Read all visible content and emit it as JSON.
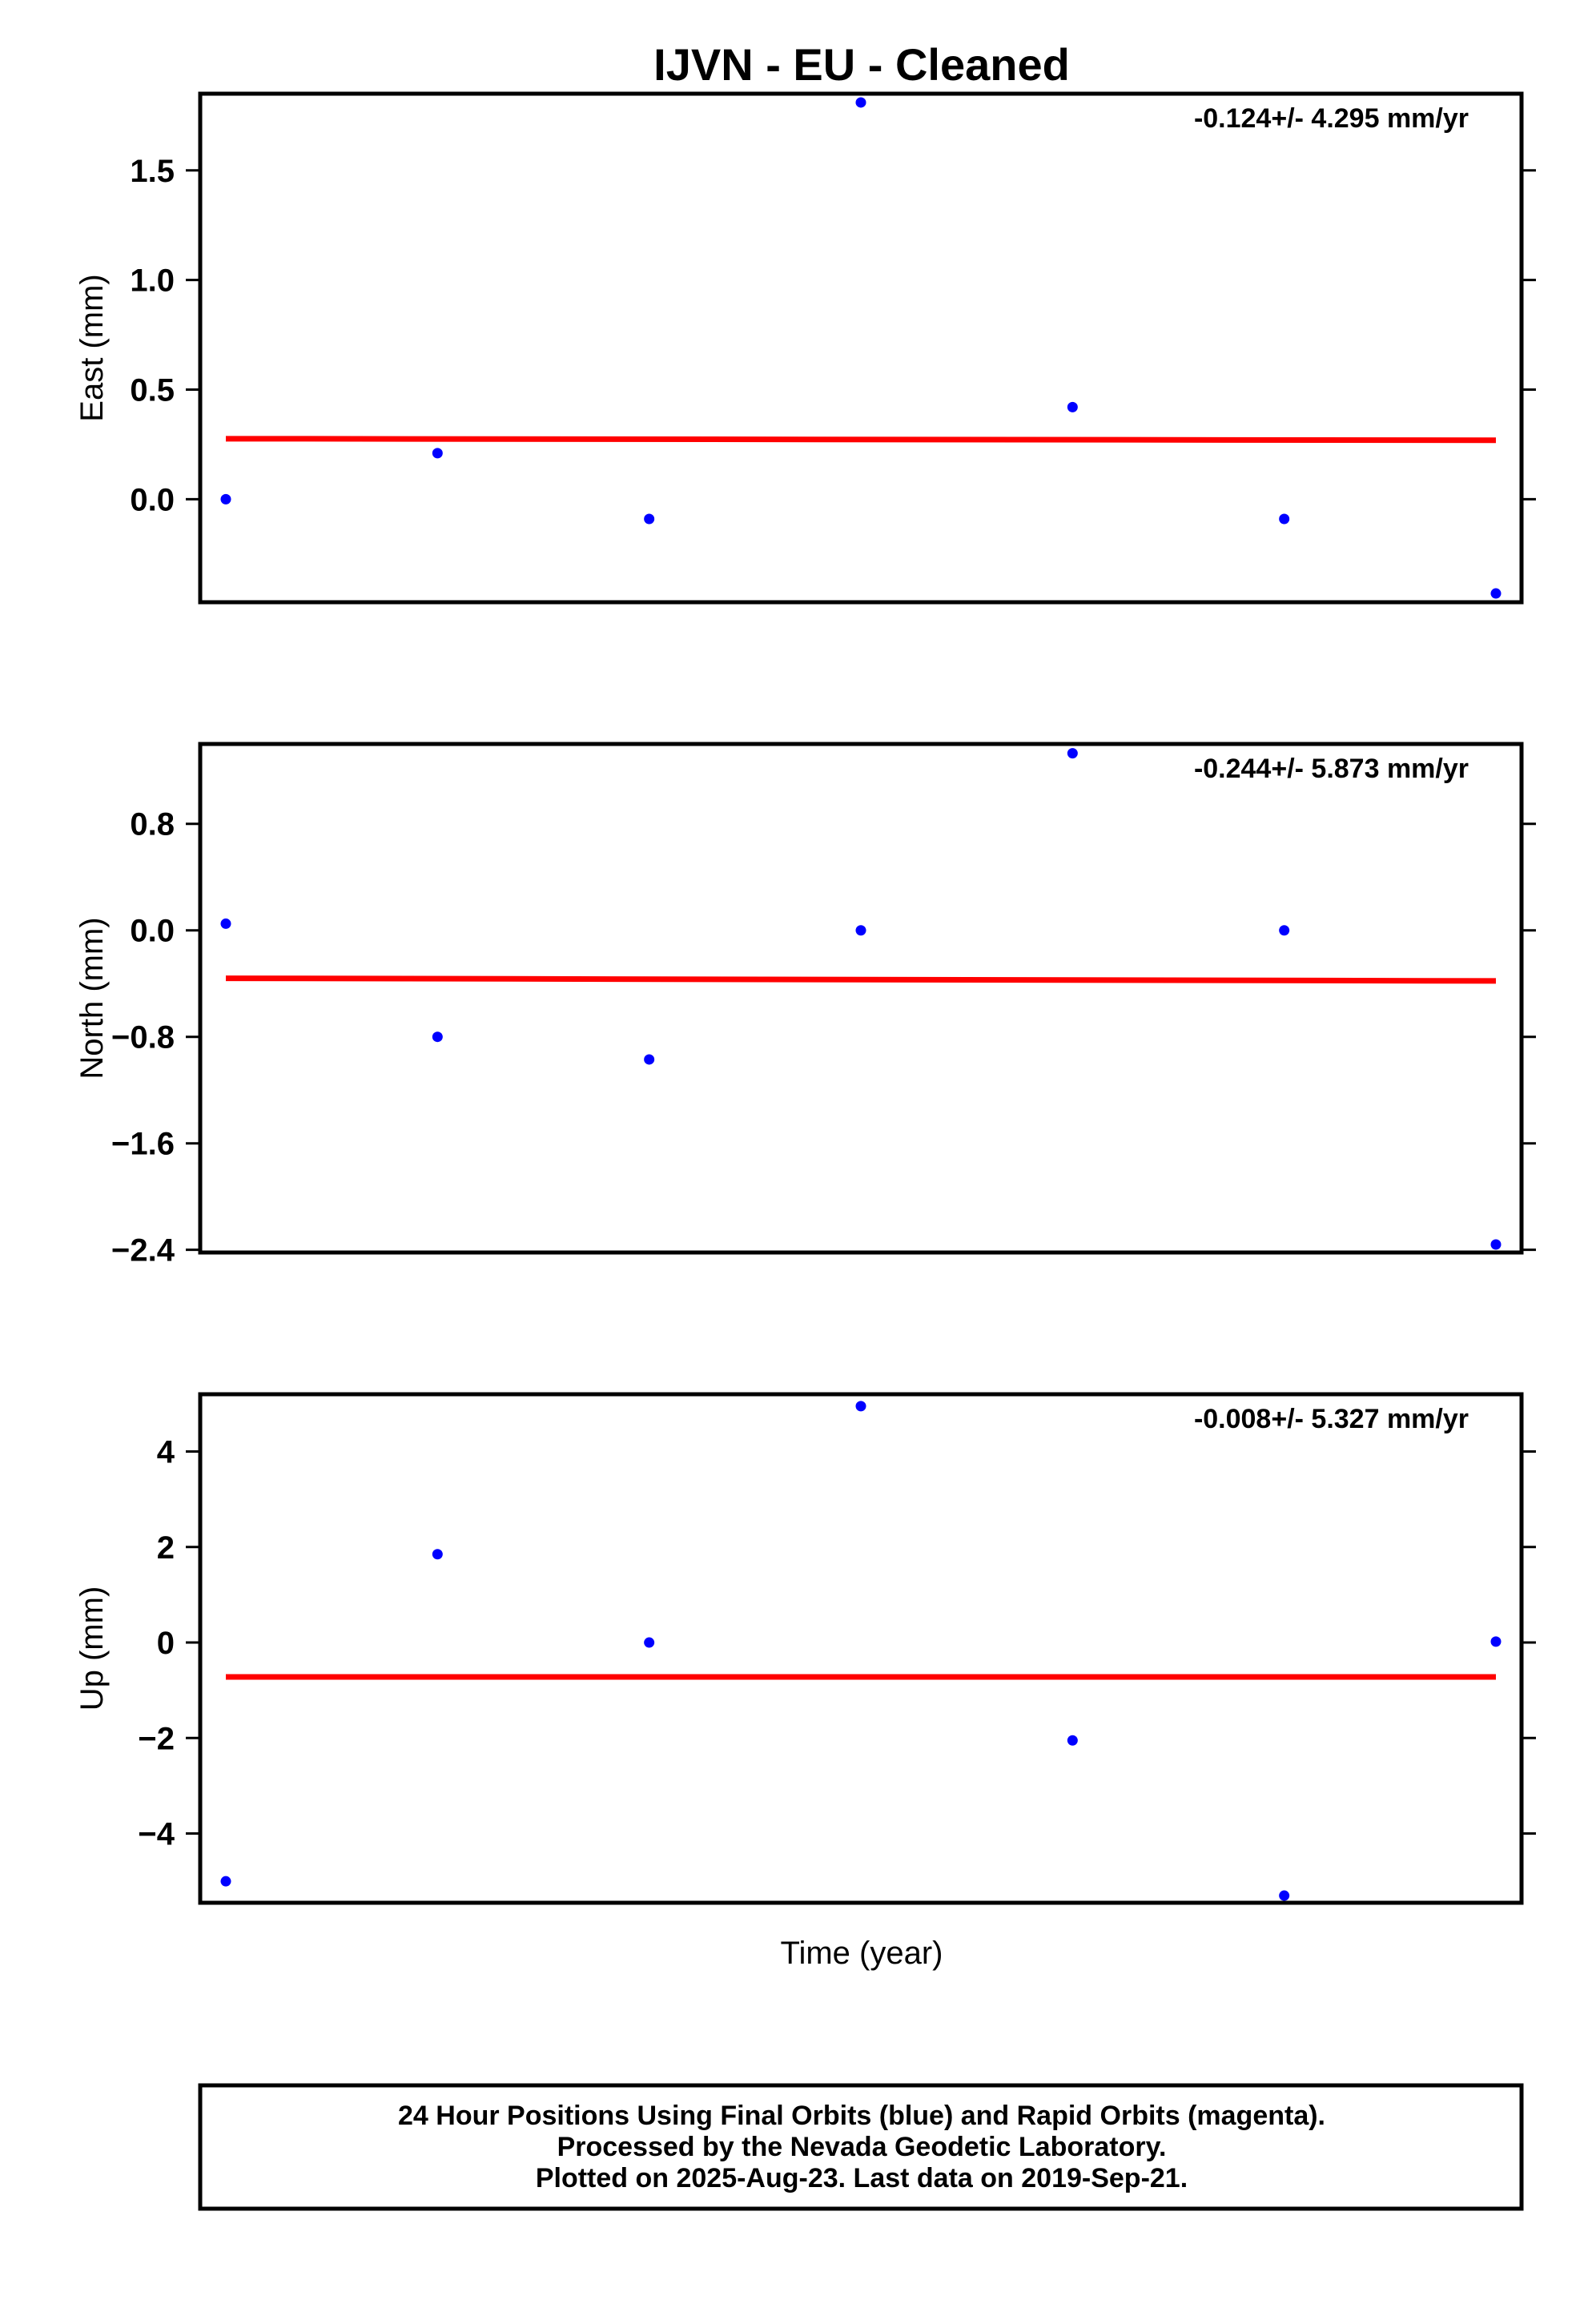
{
  "title": "IJVN  - EU - Cleaned",
  "xlabel": "Time (year)",
  "footer": {
    "line1": "24 Hour Positions Using Final Orbits (blue) and Rapid Orbits (magenta).",
    "line2": "Processed by the Nevada Geodetic Laboratory.",
    "line3": "Plotted on 2025-Aug-23. Last data on 2019-Sep-21."
  },
  "colors": {
    "points": "#0000ff",
    "fit": "#ff0000",
    "frame": "#000000"
  },
  "chart_data": [
    {
      "type": "scatter",
      "ylabel": "East (mm)",
      "rate": "-0.124+/- 4.295 mm/yr",
      "ylim": [
        -0.47,
        1.85
      ],
      "yticks": [
        1.5,
        1.0,
        0.5,
        0.0
      ],
      "ytick_labels": [
        "1.5",
        "1.0",
        "0.5",
        "0.0"
      ],
      "x": [
        0,
        1,
        2,
        3,
        4,
        5,
        6
      ],
      "values": [
        0.0,
        0.21,
        -0.09,
        1.81,
        0.42,
        -0.09,
        -0.43
      ],
      "fit": [
        0.276,
        0.269
      ]
    },
    {
      "type": "scatter",
      "ylabel": "North (mm)",
      "rate": "-0.244+/- 5.873 mm/yr",
      "ylim": [
        -2.42,
        1.4
      ],
      "yticks": [
        0.8,
        0.0,
        -0.8,
        -1.6,
        -2.4
      ],
      "ytick_labels": [
        "0.8",
        "0.0",
        "−0.8",
        "−1.6",
        "−2.4"
      ],
      "x": [
        0,
        1,
        2,
        3,
        4,
        5,
        6
      ],
      "values": [
        0.05,
        -0.8,
        -0.97,
        0.0,
        1.33,
        0.0,
        -2.36
      ],
      "fit": [
        -0.36,
        -0.38
      ]
    },
    {
      "type": "scatter",
      "ylabel": "Up (mm)",
      "rate": "-0.008+/- 5.327 mm/yr",
      "ylim": [
        -5.45,
        5.2
      ],
      "yticks": [
        4,
        2,
        0,
        -2,
        -4
      ],
      "ytick_labels": [
        "4",
        "2",
        "0",
        "−2",
        "−4"
      ],
      "x": [
        0,
        1,
        2,
        3,
        4,
        5,
        6
      ],
      "values": [
        -5.0,
        1.85,
        0.0,
        4.95,
        -2.05,
        -5.3,
        0.02
      ],
      "fit": [
        -0.72,
        -0.72
      ]
    }
  ]
}
